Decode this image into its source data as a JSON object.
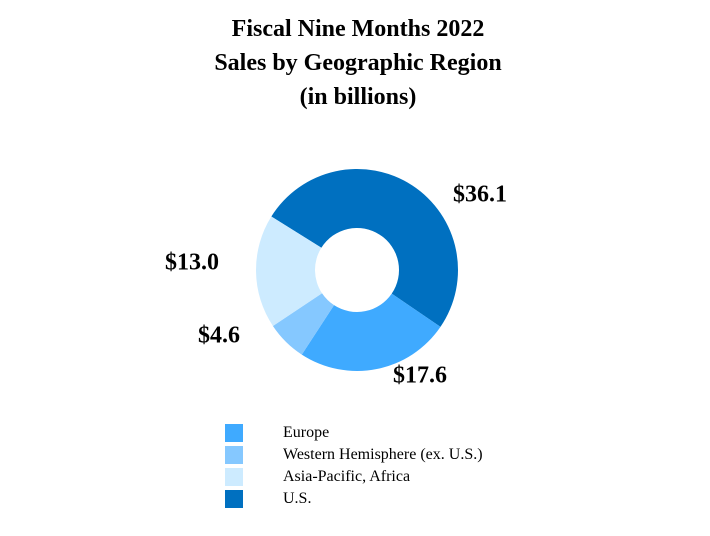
{
  "chart_data": {
    "type": "pie",
    "title_lines": [
      "Fiscal Nine Months 2022",
      "Sales by Geographic Region",
      "(in billions)"
    ],
    "slices": [
      {
        "name": "U.S.",
        "value": 36.1,
        "label": "$36.1",
        "color": "#0070C0"
      },
      {
        "name": "Europe",
        "value": 17.6,
        "label": "$17.6",
        "color": "#3FAAFF"
      },
      {
        "name": "Western Hemisphere (ex. U.S.)",
        "value": 4.6,
        "label": "$4.6",
        "color": "#85C8FF"
      },
      {
        "name": "Asia-Pacific, Africa",
        "value": 13.0,
        "label": "$13.0",
        "color": "#CDEBFF"
      }
    ],
    "legend": [
      {
        "label": "Europe",
        "color": "#3FAAFF"
      },
      {
        "label": "Western Hemisphere (ex. U.S.)",
        "color": "#85C8FF"
      },
      {
        "label": "Asia-Pacific, Africa",
        "color": "#CDEBFF"
      },
      {
        "label": "U.S.",
        "color": "#0070C0"
      }
    ],
    "legend_position": "bottom",
    "donut": true
  }
}
